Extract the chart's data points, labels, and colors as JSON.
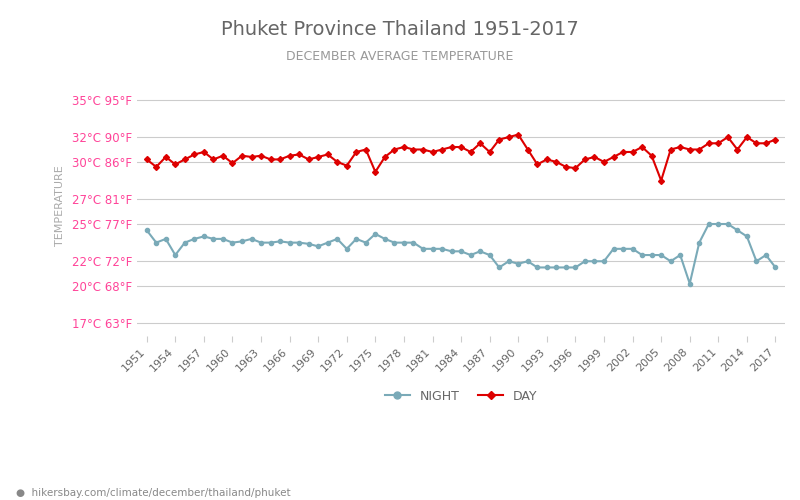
{
  "title": "Phuket Province Thailand 1951-2017",
  "subtitle": "DECEMBER AVERAGE TEMPERATURE",
  "ylabel": "TEMPERATURE",
  "title_color": "#666666",
  "subtitle_color": "#999999",
  "ylabel_color": "#aaaaaa",
  "bg_color": "#ffffff",
  "grid_color": "#cccccc",
  "years": [
    1951,
    1952,
    1953,
    1954,
    1955,
    1956,
    1957,
    1958,
    1959,
    1960,
    1961,
    1962,
    1963,
    1964,
    1965,
    1966,
    1967,
    1968,
    1969,
    1970,
    1971,
    1972,
    1973,
    1974,
    1975,
    1976,
    1977,
    1978,
    1979,
    1980,
    1981,
    1982,
    1983,
    1984,
    1985,
    1986,
    1987,
    1988,
    1989,
    1990,
    1991,
    1992,
    1993,
    1994,
    1995,
    1996,
    1997,
    1998,
    1999,
    2000,
    2001,
    2002,
    2003,
    2004,
    2005,
    2006,
    2007,
    2008,
    2009,
    2010,
    2011,
    2012,
    2013,
    2014,
    2015,
    2016,
    2017
  ],
  "day_temps": [
    30.2,
    29.6,
    30.4,
    29.8,
    30.2,
    30.6,
    30.8,
    30.2,
    30.5,
    29.9,
    30.5,
    30.4,
    30.5,
    30.2,
    30.2,
    30.5,
    30.6,
    30.2,
    30.4,
    30.6,
    30.0,
    29.7,
    30.8,
    31.0,
    29.2,
    30.4,
    31.0,
    31.2,
    31.0,
    31.0,
    30.8,
    31.0,
    31.2,
    31.2,
    30.8,
    31.5,
    30.8,
    31.8,
    32.0,
    32.2,
    31.0,
    29.8,
    30.2,
    30.0,
    29.6,
    29.5,
    30.2,
    30.4,
    30.0,
    30.4,
    30.8,
    30.8,
    31.2,
    30.5,
    28.5,
    31.0,
    31.2,
    31.0,
    31.0,
    31.5,
    31.5,
    32.0,
    31.0,
    32.0,
    31.5,
    31.5,
    31.8
  ],
  "night_temps": [
    24.5,
    23.5,
    23.8,
    22.5,
    23.5,
    23.8,
    24.0,
    23.8,
    23.8,
    23.5,
    23.6,
    23.8,
    23.5,
    23.5,
    23.6,
    23.5,
    23.5,
    23.4,
    23.2,
    23.5,
    23.8,
    23.0,
    23.8,
    23.5,
    24.2,
    23.8,
    23.5,
    23.5,
    23.5,
    23.0,
    23.0,
    23.0,
    22.8,
    22.8,
    22.5,
    22.8,
    22.5,
    21.5,
    22.0,
    21.8,
    22.0,
    21.5,
    21.5,
    21.5,
    21.5,
    21.5,
    22.0,
    22.0,
    22.0,
    23.0,
    23.0,
    23.0,
    22.5,
    22.5,
    22.5,
    22.0,
    22.5,
    20.2,
    23.5,
    25.0,
    25.0,
    25.0,
    24.5,
    24.0,
    22.0,
    22.5,
    21.5
  ],
  "day_color": "#dd0000",
  "night_color": "#7aaab8",
  "day_marker": "D",
  "night_marker": "o",
  "marker_size": 3,
  "line_width": 1.5,
  "yticks_c": [
    17,
    20,
    22,
    25,
    27,
    30,
    32,
    35
  ],
  "yticks_f": [
    63,
    68,
    72,
    77,
    81,
    86,
    90,
    95
  ],
  "ymin": 16,
  "ymax": 37,
  "xtick_years": [
    1951,
    1954,
    1957,
    1960,
    1963,
    1966,
    1969,
    1972,
    1975,
    1978,
    1981,
    1984,
    1987,
    1990,
    1993,
    1996,
    1999,
    2002,
    2005,
    2008,
    2011,
    2014,
    2017
  ],
  "url_text": "hikersbay.com/climate/december/thailand/phuket",
  "legend_night": "NIGHT",
  "legend_day": "DAY",
  "ytick_label_color": "#ff4499"
}
